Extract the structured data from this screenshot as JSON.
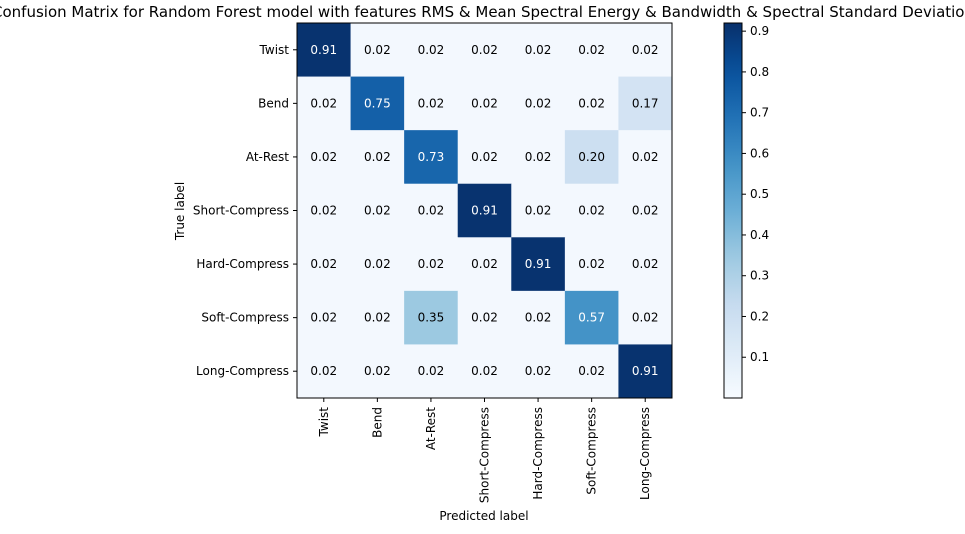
{
  "chart_data": {
    "type": "heatmap",
    "title": "Confusion Matrix for Random Forest model with features RMS & Mean Spectral Energy & Bandwidth & Spectral Standard Deviation",
    "xlabel": "Predicted label",
    "ylabel": "True label",
    "x_categories": [
      "Twist",
      "Bend",
      "At-Rest",
      "Short-Compress",
      "Hard-Compress",
      "Soft-Compress",
      "Long-Compress"
    ],
    "y_categories": [
      "Twist",
      "Bend",
      "At-Rest",
      "Short-Compress",
      "Hard-Compress",
      "Soft-Compress",
      "Long-Compress"
    ],
    "values": [
      [
        0.91,
        0.02,
        0.02,
        0.02,
        0.02,
        0.02,
        0.02
      ],
      [
        0.02,
        0.75,
        0.02,
        0.02,
        0.02,
        0.02,
        0.17
      ],
      [
        0.02,
        0.02,
        0.73,
        0.02,
        0.02,
        0.2,
        0.02
      ],
      [
        0.02,
        0.02,
        0.02,
        0.91,
        0.02,
        0.02,
        0.02
      ],
      [
        0.02,
        0.02,
        0.02,
        0.02,
        0.91,
        0.02,
        0.02
      ],
      [
        0.02,
        0.02,
        0.35,
        0.02,
        0.02,
        0.57,
        0.02
      ],
      [
        0.02,
        0.02,
        0.02,
        0.02,
        0.02,
        0.02,
        0.91
      ]
    ],
    "colormap": "Blues",
    "colorbar": {
      "range": [
        0.0,
        0.92
      ],
      "ticks": [
        0.1,
        0.2,
        0.3,
        0.4,
        0.5,
        0.6,
        0.7,
        0.8,
        0.9
      ],
      "tick_labels": [
        "0.1",
        "0.2",
        "0.3",
        "0.4",
        "0.5",
        "0.6",
        "0.7",
        "0.8",
        "0.9"
      ]
    },
    "cell_text_colors": {
      "dark_cells": "#ffffff",
      "light_cells": "#000000"
    }
  }
}
